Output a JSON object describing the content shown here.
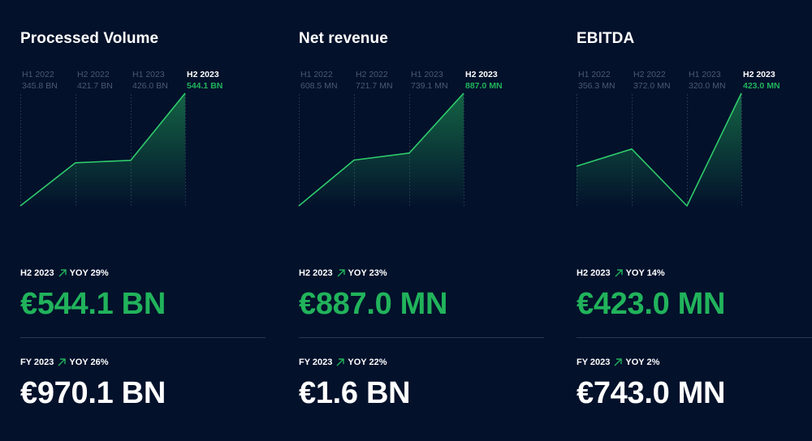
{
  "colors": {
    "background": "#03112b",
    "accent": "#21b35b",
    "muted": "#4b5a73",
    "divider": "#2b3a54",
    "line": "#2fcb6b"
  },
  "panels": [
    {
      "title": "Processed Volume",
      "h2": {
        "period": "H2 2023",
        "yoy": "YOY 29%",
        "value": "€544.1 BN"
      },
      "fy": {
        "period": "FY 2023",
        "yoy": "YOY 26%",
        "value": "€970.1 BN"
      }
    },
    {
      "title": "Net revenue",
      "h2": {
        "period": "H2 2023",
        "yoy": "YOY 23%",
        "value": "€887.0 MN"
      },
      "fy": {
        "period": "FY 2023",
        "yoy": "YOY 22%",
        "value": "€1.6 BN"
      }
    },
    {
      "title": "EBITDA",
      "h2": {
        "period": "H2 2023",
        "yoy": "YOY 14%",
        "value": "€423.0 MN"
      },
      "fy": {
        "period": "FY 2023",
        "yoy": "YOY 2%",
        "value": "€743.0 MN"
      }
    }
  ],
  "chart_data": [
    {
      "type": "area",
      "title": "Processed Volume",
      "categories": [
        "H1 2022",
        "H2 2022",
        "H1 2023",
        "H2 2023"
      ],
      "labels": [
        "345.8 BN",
        "421.7 BN",
        "426.0 BN",
        "544.1 BN"
      ],
      "values": [
        345.8,
        421.7,
        426.0,
        544.1
      ],
      "ylim": [
        345.8,
        544.1
      ],
      "highlight_index": 3,
      "unit": "BN"
    },
    {
      "type": "area",
      "title": "Net revenue",
      "categories": [
        "H1 2022",
        "H2 2022",
        "H1 2023",
        "H2 2023"
      ],
      "labels": [
        "608.5 MN",
        "721.7 MN",
        "739.1 MN",
        "887.0 MN"
      ],
      "values": [
        608.5,
        721.7,
        739.1,
        887.0
      ],
      "ylim": [
        608.5,
        887.0
      ],
      "highlight_index": 3,
      "unit": "MN"
    },
    {
      "type": "area",
      "title": "EBITDA",
      "categories": [
        "H1 2022",
        "H2 2022",
        "H1 2023",
        "H2 2023"
      ],
      "labels": [
        "356.3 MN",
        "372.0 MN",
        "320.0 MN",
        "423.0 MN"
      ],
      "values": [
        356.3,
        372.0,
        320.0,
        423.0
      ],
      "ylim": [
        320.0,
        423.0
      ],
      "highlight_index": 3,
      "unit": "MN"
    }
  ]
}
